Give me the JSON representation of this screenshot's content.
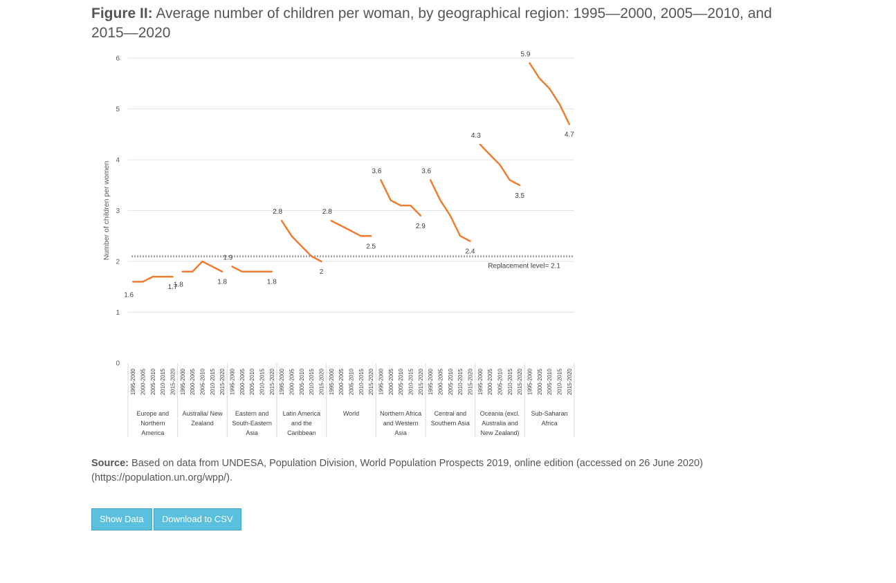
{
  "figure": {
    "title_lead": "Figure II:",
    "title_text": " Average number of children per woman, by geographical region: 1995—2000, 2005—2010, and 2015—2020"
  },
  "source": {
    "lead": "Source:",
    "text": " Based on data from UNDESA, Population Division, World Population Prospects 2019, online edition (accessed on 26 June 2020) (https://population.un.org/wpp/)."
  },
  "buttons": {
    "show_data": "Show Data",
    "download_csv": "Download to CSV"
  },
  "chart_data": {
    "type": "line",
    "ylabel": "Number of children per women",
    "ylim": [
      0,
      6
    ],
    "yticks": [
      0,
      1,
      2,
      3,
      4,
      5,
      6
    ],
    "grid": true,
    "periods": [
      "1995-2000",
      "2000-2005",
      "2005-2010",
      "2010-2015",
      "2015-2020"
    ],
    "series_color": "#ed7d31",
    "reference_line": {
      "value": 2.1,
      "label": "Replacement level= 2.1",
      "color": "#a6a6a6"
    },
    "groups": [
      {
        "label_lines": [
          "Europe and",
          "Northern",
          "America"
        ],
        "values": [
          1.6,
          1.6,
          1.7,
          1.7,
          1.7
        ],
        "labels": [
          {
            "i": 0,
            "text": "1.6"
          },
          {
            "i": 4,
            "text": "1.7"
          }
        ]
      },
      {
        "label_lines": [
          "Australia/ New",
          "Zealand"
        ],
        "values": [
          1.8,
          1.8,
          2.0,
          1.9,
          1.8
        ],
        "labels": [
          {
            "i": 0,
            "text": "1.8"
          },
          {
            "i": 4,
            "text": "1.8"
          }
        ]
      },
      {
        "label_lines": [
          "Eastern and",
          "South-Eastern",
          "Asia"
        ],
        "values": [
          1.9,
          1.8,
          1.8,
          1.8,
          1.8
        ],
        "labels": [
          {
            "i": 0,
            "text": "1.9"
          },
          {
            "i": 4,
            "text": "1.8"
          }
        ]
      },
      {
        "label_lines": [
          "Latin America",
          "and the",
          "Caribbean"
        ],
        "values": [
          2.8,
          2.5,
          2.3,
          2.1,
          2.0
        ],
        "labels": [
          {
            "i": 0,
            "text": "2.8"
          },
          {
            "i": 4,
            "text": "2"
          }
        ]
      },
      {
        "label_lines": [
          "World"
        ],
        "values": [
          2.8,
          2.7,
          2.6,
          2.5,
          2.5
        ],
        "labels": [
          {
            "i": 0,
            "text": "2.8"
          },
          {
            "i": 4,
            "text": "2.5"
          }
        ]
      },
      {
        "label_lines": [
          "Northern Africa",
          "and Western",
          "Asia"
        ],
        "values": [
          3.6,
          3.2,
          3.1,
          3.1,
          2.9
        ],
        "labels": [
          {
            "i": 0,
            "text": "3.6"
          },
          {
            "i": 4,
            "text": "2.9"
          }
        ]
      },
      {
        "label_lines": [
          "Central and",
          "Southern Asia"
        ],
        "values": [
          3.6,
          3.2,
          2.9,
          2.5,
          2.4
        ],
        "labels": [
          {
            "i": 0,
            "text": "3.6"
          },
          {
            "i": 4,
            "text": "2.4"
          }
        ]
      },
      {
        "label_lines": [
          "Oceania (excl.",
          "Australia and",
          "New Zealand)"
        ],
        "values": [
          4.3,
          4.1,
          3.9,
          3.6,
          3.5
        ],
        "labels": [
          {
            "i": 0,
            "text": "4.3"
          },
          {
            "i": 4,
            "text": "3.5"
          }
        ]
      },
      {
        "label_lines": [
          "Sub-Saharan",
          "Africa"
        ],
        "values": [
          5.9,
          5.6,
          5.4,
          5.1,
          4.7
        ],
        "labels": [
          {
            "i": 0,
            "text": "5.9"
          },
          {
            "i": 4,
            "text": "4.7"
          }
        ]
      }
    ]
  }
}
